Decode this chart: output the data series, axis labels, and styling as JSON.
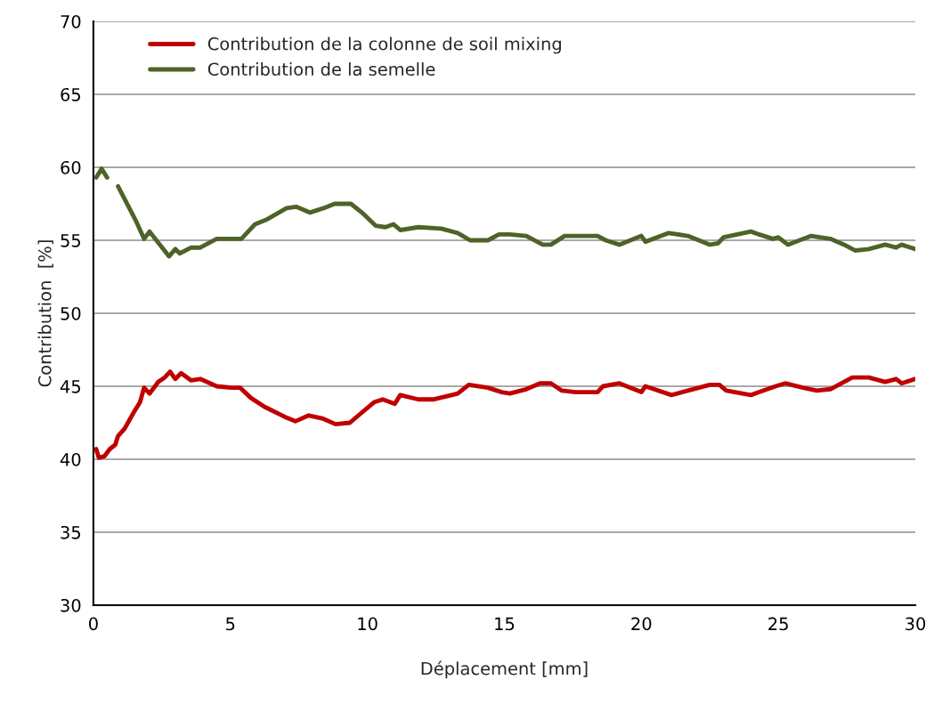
{
  "chart_data": {
    "type": "line",
    "xlabel": "Déplacement [mm]",
    "ylabel": "Contribution  [%]",
    "xlim": [
      0,
      30
    ],
    "xticks": [
      0,
      5,
      10,
      15,
      20,
      25,
      30
    ],
    "ylim": [
      30,
      70
    ],
    "yticks": [
      30,
      35,
      40,
      45,
      50,
      55,
      60,
      65,
      70
    ],
    "grid": "y",
    "legend": "top left",
    "marker": "none",
    "line_style": "solid",
    "series": [
      {
        "name": "Contribution de la colonne de soil mixing",
        "color": "#c00000",
        "x": [
          0.1,
          0.2,
          0.4,
          0.6,
          0.8,
          0.9,
          1.14,
          1.5,
          1.7,
          1.85,
          2.05,
          2.37,
          2.6,
          2.8,
          2.99,
          3.2,
          3.57,
          3.9,
          4.5,
          5.04,
          5.36,
          5.75,
          6.24,
          6.99,
          7.37,
          7.86,
          8.35,
          8.84,
          9.36,
          9.8,
          10.24,
          10.56,
          11.0,
          11.2,
          11.86,
          12.4,
          13.3,
          13.7,
          14.4,
          14.9,
          15.2,
          15.8,
          16.3,
          16.7,
          17.1,
          17.6,
          18.4,
          18.6,
          19.2,
          20.0,
          20.15,
          21.1,
          21.7,
          22.5,
          22.85,
          23.1,
          24.0,
          24.3,
          24.9,
          25.25,
          25.9,
          26.4,
          26.9,
          27.2,
          27.7,
          28.3,
          28.9,
          29.3,
          29.5,
          30.0
        ],
        "values": [
          40.7,
          40.1,
          40.2,
          40.7,
          41.0,
          41.6,
          42.1,
          43.3,
          43.9,
          44.9,
          44.5,
          45.3,
          45.6,
          46.0,
          45.5,
          45.9,
          45.4,
          45.5,
          45.0,
          44.9,
          44.9,
          44.2,
          43.6,
          42.9,
          42.6,
          43.0,
          42.8,
          42.4,
          42.5,
          43.2,
          43.9,
          44.1,
          43.8,
          44.4,
          44.1,
          44.1,
          44.5,
          45.1,
          44.9,
          44.6,
          44.5,
          44.8,
          45.2,
          45.2,
          44.7,
          44.6,
          44.6,
          45.0,
          45.2,
          44.6,
          45.0,
          44.4,
          44.7,
          45.1,
          45.1,
          44.7,
          44.4,
          44.6,
          45.0,
          45.2,
          44.9,
          44.7,
          44.8,
          45.1,
          45.6,
          45.6,
          45.3,
          45.5,
          45.2,
          45.5
        ]
      },
      {
        "name": "Contribution de la semelle",
        "color": "#4f6228",
        "x": [
          0.1,
          0.3,
          0.5,
          0.7,
          0.9,
          1.56,
          1.85,
          2.05,
          2.76,
          2.99,
          3.15,
          3.57,
          3.9,
          4.5,
          5.1,
          5.4,
          5.9,
          6.3,
          7.05,
          7.4,
          7.9,
          8.4,
          8.8,
          9.4,
          9.8,
          10.3,
          10.66,
          10.95,
          11.2,
          11.86,
          12.7,
          13.3,
          13.75,
          14.4,
          14.8,
          15.2,
          15.8,
          16.4,
          16.7,
          17.2,
          18.4,
          18.7,
          19.2,
          20.0,
          20.15,
          21.0,
          21.7,
          22.5,
          22.8,
          23.0,
          24.0,
          24.3,
          24.8,
          25.0,
          25.35,
          26.2,
          26.9,
          27.4,
          27.8,
          28.3,
          28.9,
          29.3,
          29.5,
          30.0
        ],
        "values": [
          59.3,
          59.9,
          59.3,
          null,
          58.7,
          56.3,
          55.1,
          55.6,
          53.9,
          54.4,
          54.1,
          54.5,
          54.5,
          55.1,
          55.1,
          55.1,
          56.1,
          56.4,
          57.2,
          57.3,
          56.9,
          57.2,
          57.5,
          57.5,
          56.9,
          56.0,
          55.9,
          56.1,
          55.7,
          55.9,
          55.8,
          55.5,
          55.0,
          55.0,
          55.4,
          55.4,
          55.3,
          54.7,
          54.7,
          55.3,
          55.3,
          55.0,
          54.7,
          55.3,
          54.9,
          55.5,
          55.3,
          54.7,
          54.8,
          55.2,
          55.6,
          55.4,
          55.1,
          55.2,
          54.7,
          55.3,
          55.1,
          54.7,
          54.3,
          54.4,
          54.7,
          54.5,
          54.7,
          54.4
        ]
      }
    ]
  }
}
